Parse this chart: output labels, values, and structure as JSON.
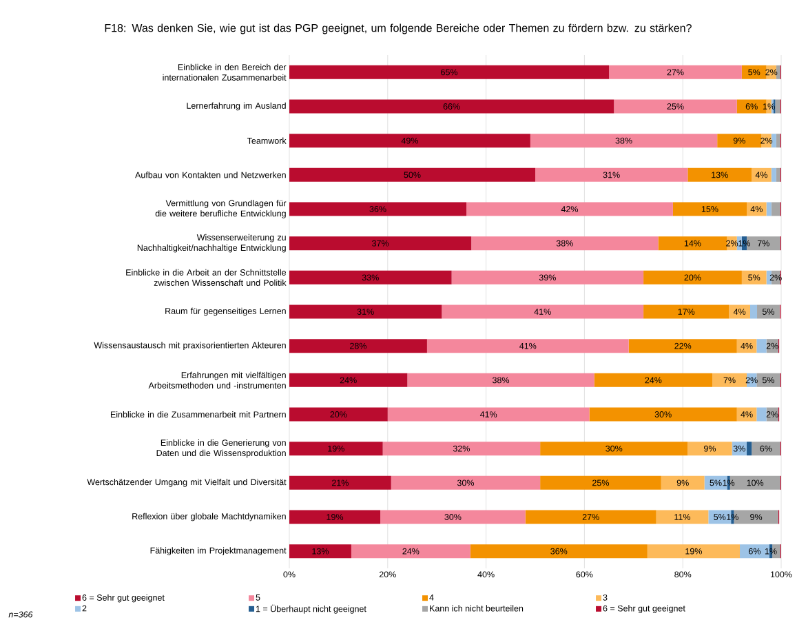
{
  "chart_data": {
    "type": "bar",
    "orientation": "horizontal",
    "stacked": true,
    "title": "F18: Was denken Sie, wie gut ist das PGP geeignet, um folgende Bereiche oder Themen zu fördern bzw. zu stärken?",
    "categories": [
      "Einblicke in den Bereich der internationalen Zusammenarbeit",
      "Lernerfahrung im Ausland",
      "Teamwork",
      "Aufbau von Kontakten und Netzwerken",
      "Vermittlung von Grundlagen für die weitere berufliche Entwicklung",
      "Wissenserweiterung zu Nachhaltigkeit/nachhaltige Entwicklung",
      "Einblicke in die Arbeit an der Schnittstelle zwischen Wissenschaft und Politik",
      "Raum für gegenseitiges Lernen",
      "Wissensaustausch mit praxisorientierten Akteuren",
      "Erfahrungen mit vielfältigen Arbeitsmethoden und -instrumenten",
      "Einblicke in die Zusammenarbeit mit Partnern",
      "Einblicke in die Generierung von Daten und die Wissensproduktion",
      "Wertschätzender Umgang mit Vielfalt und Diversität",
      "Reflexion über globale Machtdynamiken",
      "Fähigkeiten im Projektmanagement"
    ],
    "series": [
      {
        "name": "6 = Sehr gut geeignet",
        "color": "#ba0c2f",
        "values": [
          65,
          66,
          49,
          50,
          36,
          37,
          33,
          31,
          28,
          24,
          20,
          19,
          20.7,
          18.5,
          12.6
        ],
        "value_labels": [
          "65%",
          "66%",
          "49%",
          "50%",
          "36%",
          "37%",
          "33%",
          "31%",
          "28%",
          "24%",
          "20%",
          "19%",
          "21%",
          "19%",
          "13%"
        ]
      },
      {
        "name": "5",
        "color": "#f4879c",
        "values": [
          27,
          25,
          38,
          31,
          42,
          38,
          39,
          41,
          41,
          38,
          41,
          32,
          30.3,
          29.5,
          24.2
        ],
        "value_labels": [
          "27%",
          "25%",
          "38%",
          "31%",
          "42%",
          "38%",
          "39%",
          "41%",
          "41%",
          "38%",
          "41%",
          "32%",
          "30%",
          "30%",
          "24%"
        ]
      },
      {
        "name": "4",
        "color": "#f39200",
        "values": [
          5,
          6,
          9,
          13,
          15,
          14,
          20,
          17.4,
          22,
          24,
          30,
          30,
          24.6,
          26.6,
          36
        ],
        "value_labels": [
          "5%",
          "6%",
          "9%",
          "13%",
          "15%",
          "14%",
          "20%",
          "17%",
          "22%",
          "24%",
          "30%",
          "30%",
          "25%",
          "27%",
          "36%"
        ]
      },
      {
        "name": "3",
        "color": "#fdba5a",
        "values": [
          2,
          1,
          2,
          4,
          4,
          2,
          5,
          4.3,
          4,
          7,
          4,
          9,
          8.8,
          10.6,
          18.8
        ],
        "value_labels": [
          "2%",
          "1%",
          "2%",
          "4%",
          "4%",
          "2%",
          "5%",
          "4%",
          "4%",
          "7%",
          "4%",
          "9%",
          "9%",
          "11%",
          "19%"
        ]
      },
      {
        "name": "2",
        "color": "#9dc3e6",
        "values": [
          0,
          0.4,
          1,
          1,
          1,
          1,
          1,
          1.4,
          2,
          2,
          2,
          3,
          4.6,
          4.6,
          6
        ],
        "value_labels": [
          null,
          null,
          null,
          null,
          null,
          null,
          null,
          null,
          null,
          "2%",
          null,
          "3%",
          "5%",
          "5%",
          "6%"
        ]
      },
      {
        "name": "1 = Überhaupt nicht geeignet",
        "color": "#255e91",
        "values": [
          0,
          0.4,
          0,
          0,
          0,
          1,
          0,
          0,
          0,
          0,
          0,
          1,
          0.6,
          0.6,
          0.6
        ],
        "value_labels": [
          null,
          null,
          null,
          null,
          null,
          "1%",
          null,
          null,
          null,
          null,
          null,
          null,
          "1%",
          "1%",
          "1%"
        ]
      },
      {
        "name": "Kann ich nicht beurteilen",
        "color": "#a6a6a6",
        "values": [
          0.8,
          1,
          0.8,
          0.8,
          1.8,
          6.8,
          1.8,
          4.6,
          2.4,
          4.8,
          2.4,
          5.8,
          10.2,
          9.0,
          1.6
        ],
        "value_labels": [
          null,
          null,
          null,
          null,
          null,
          "7%",
          "2%",
          "5%",
          "2%",
          "5%",
          "2%",
          "6%",
          "10%",
          "9%",
          null
        ]
      },
      {
        "name": "6 = Sehr gut geeignet",
        "color": "#ba0c2f",
        "values": [
          0.2,
          0.2,
          0.2,
          0.2,
          0.2,
          0.2,
          0.2,
          0.2,
          0.2,
          0.2,
          0.2,
          0.2,
          0.2,
          0.2,
          0.2
        ]
      }
    ],
    "xlim": [
      0,
      100
    ],
    "xticks": [
      {
        "value": 0,
        "label": "0%"
      },
      {
        "value": 20,
        "label": "20%"
      },
      {
        "value": 40,
        "label": "40%"
      },
      {
        "value": 60,
        "label": "60%"
      },
      {
        "value": 80,
        "label": "80%"
      },
      {
        "value": 100,
        "label": "100%"
      }
    ],
    "grid": "x",
    "legend": "bottom",
    "annotations": [
      "*n=366*"
    ]
  }
}
